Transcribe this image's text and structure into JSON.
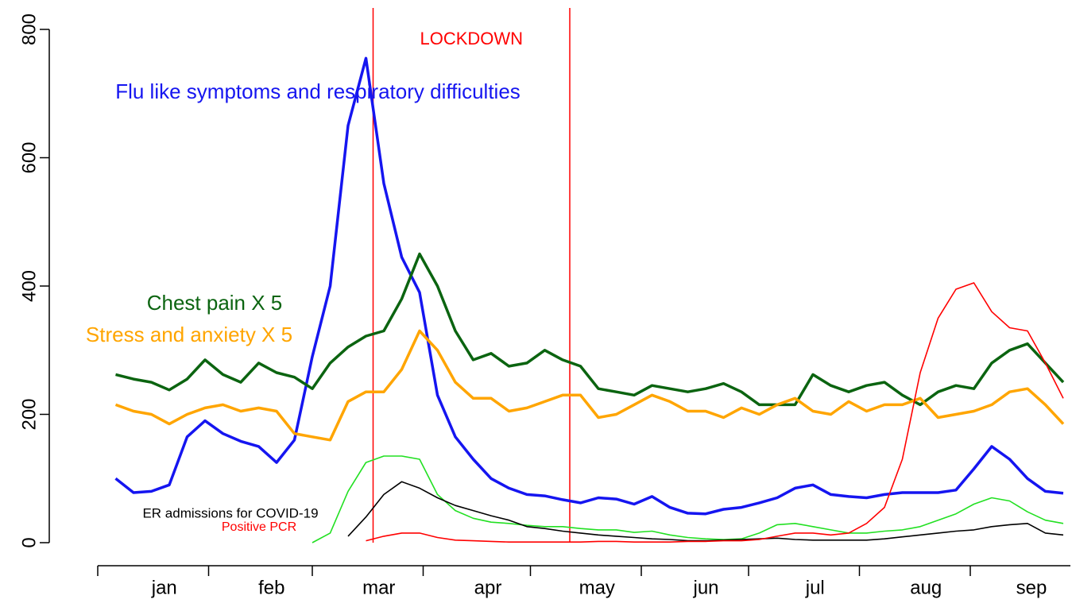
{
  "chart_data": {
    "type": "line",
    "x": [
      5,
      10,
      15,
      20,
      25,
      30,
      35,
      40,
      45,
      50,
      55,
      60,
      65,
      70,
      75,
      80,
      85,
      90,
      95,
      100,
      105,
      110,
      115,
      120,
      125,
      130,
      135,
      140,
      145,
      150,
      155,
      160,
      165,
      170,
      175,
      180,
      185,
      190,
      195,
      200,
      205,
      210,
      215,
      220,
      225,
      230,
      235,
      240,
      245,
      250,
      255,
      260,
      265,
      270
    ],
    "xlim": [
      0,
      272
    ],
    "categories": [
      "jan",
      "feb",
      "mar",
      "apr",
      "may",
      "jun",
      "jul",
      "aug",
      "sep"
    ],
    "month_starts": [
      0,
      31,
      60,
      91,
      121,
      152,
      182,
      213,
      244
    ],
    "ylim": [
      0,
      800
    ],
    "yticks": [
      0,
      200,
      400,
      600,
      800
    ],
    "vlines": {
      "color": "#ff0000",
      "values": [
        77,
        132
      ],
      "label": "LOCKDOWN"
    },
    "series": [
      {
        "name": "Flu like symptoms and respiratory difficulties",
        "color": "#1515f0",
        "width": 3.5,
        "values": [
          100,
          78,
          80,
          90,
          165,
          190,
          170,
          158,
          150,
          125,
          160,
          290,
          400,
          650,
          755,
          560,
          445,
          390,
          230,
          165,
          130,
          100,
          85,
          75,
          73,
          67,
          62,
          70,
          68,
          60,
          72,
          55,
          46,
          45,
          52,
          55,
          62,
          70,
          85,
          90,
          75,
          72,
          70,
          75,
          78,
          78,
          78,
          82,
          115,
          150,
          130,
          100,
          80,
          77
        ]
      },
      {
        "name": "Chest pain X 5",
        "color": "#0b6410",
        "width": 3.5,
        "values": [
          262,
          255,
          250,
          238,
          255,
          285,
          262,
          250,
          280,
          265,
          258,
          240,
          280,
          305,
          322,
          330,
          380,
          450,
          400,
          330,
          285,
          295,
          275,
          280,
          300,
          285,
          275,
          240,
          235,
          230,
          245,
          240,
          235,
          240,
          248,
          235,
          215,
          215,
          215,
          262,
          245,
          235,
          245,
          250,
          230,
          215,
          235,
          245,
          240,
          280,
          300,
          310,
          280,
          250
        ]
      },
      {
        "name": "Stress and anxiety X 5",
        "color": "#ffa500",
        "width": 3.5,
        "values": [
          215,
          205,
          200,
          185,
          200,
          210,
          215,
          205,
          210,
          205,
          170,
          165,
          160,
          220,
          235,
          235,
          270,
          330,
          300,
          250,
          225,
          225,
          205,
          210,
          220,
          230,
          230,
          195,
          200,
          215,
          230,
          220,
          205,
          205,
          195,
          210,
          200,
          215,
          225,
          205,
          200,
          220,
          205,
          215,
          215,
          225,
          195,
          200,
          205,
          215,
          235,
          240,
          215,
          185
        ]
      },
      {
        "name": null,
        "color": "#22e022",
        "width": 1.6,
        "values": [
          null,
          null,
          null,
          null,
          null,
          null,
          null,
          null,
          null,
          null,
          null,
          0,
          15,
          80,
          125,
          135,
          135,
          130,
          75,
          50,
          38,
          32,
          30,
          27,
          25,
          25,
          22,
          20,
          20,
          16,
          18,
          12,
          8,
          6,
          5,
          6,
          15,
          28,
          30,
          25,
          20,
          15,
          15,
          18,
          20,
          25,
          35,
          45,
          60,
          70,
          65,
          48,
          35,
          30
        ]
      },
      {
        "name": "ER admissions for COVID-19",
        "color": "#000000",
        "width": 1.6,
        "values": [
          null,
          null,
          null,
          null,
          null,
          null,
          null,
          null,
          null,
          null,
          null,
          null,
          null,
          10,
          40,
          75,
          95,
          85,
          70,
          58,
          50,
          42,
          35,
          25,
          22,
          18,
          15,
          12,
          10,
          8,
          6,
          5,
          3,
          3,
          4,
          5,
          6,
          7,
          5,
          4,
          4,
          4,
          4,
          6,
          9,
          12,
          15,
          18,
          20,
          25,
          28,
          30,
          15,
          12
        ]
      },
      {
        "name": "Positive PCR",
        "color": "#ff0000",
        "width": 1.6,
        "values": [
          null,
          null,
          null,
          null,
          null,
          null,
          null,
          null,
          null,
          null,
          null,
          null,
          null,
          null,
          3,
          10,
          15,
          15,
          8,
          4,
          3,
          2,
          1,
          1,
          1,
          1,
          1,
          2,
          2,
          1,
          1,
          1,
          2,
          2,
          3,
          3,
          5,
          10,
          15,
          15,
          12,
          15,
          30,
          55,
          130,
          265,
          350,
          395,
          405,
          360,
          335,
          330,
          280,
          225
        ]
      }
    ]
  }
}
